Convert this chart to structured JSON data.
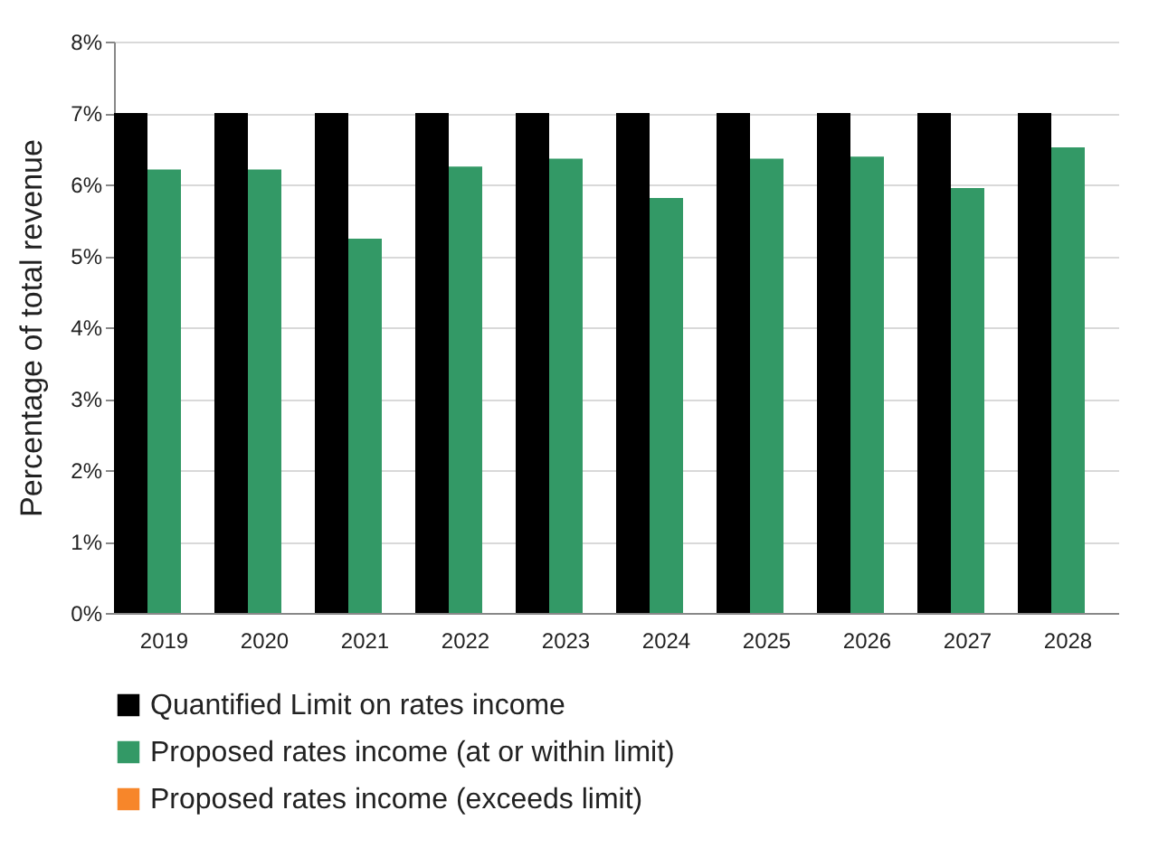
{
  "chart_data": {
    "type": "bar",
    "ylabel": "Percentage of total revenue",
    "categories": [
      "2019",
      "2020",
      "2021",
      "2022",
      "2023",
      "2024",
      "2025",
      "2026",
      "2027",
      "2028"
    ],
    "series": [
      {
        "name": "Quantified Limit on rates income",
        "color": "#000000",
        "values": [
          7,
          7,
          7,
          7,
          7,
          7,
          7,
          7,
          7,
          7
        ]
      },
      {
        "name": "Proposed rates income (at or within limit)",
        "color": "#339966",
        "values": [
          6.21,
          6.21,
          5.24,
          6.25,
          6.36,
          5.81,
          6.36,
          6.39,
          5.95,
          6.52
        ]
      },
      {
        "name": "Proposed rates income (exceeds limit)",
        "color": "#f7862a",
        "values": [
          null,
          null,
          null,
          null,
          null,
          null,
          null,
          null,
          null,
          null
        ]
      }
    ],
    "ylim": [
      0,
      8
    ],
    "yticks": [
      {
        "value": 0,
        "label": "0%"
      },
      {
        "value": 1,
        "label": "1%"
      },
      {
        "value": 2,
        "label": "2%"
      },
      {
        "value": 3,
        "label": "3%"
      },
      {
        "value": 4,
        "label": "4%"
      },
      {
        "value": 5,
        "label": "5%"
      },
      {
        "value": 6,
        "label": "6%"
      },
      {
        "value": 7,
        "label": "7%"
      },
      {
        "value": 8,
        "label": "8%"
      }
    ],
    "grid": "y",
    "legend": "bottom"
  }
}
